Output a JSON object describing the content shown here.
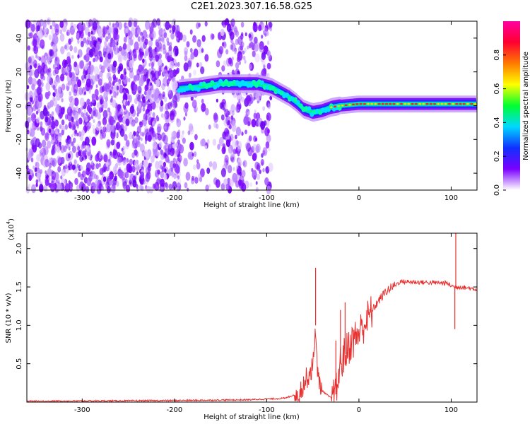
{
  "title": "C2E1.2023.307.16.58.G25",
  "chart_data": [
    {
      "type": "heatmap",
      "name": "spectrogram",
      "xlabel": "Height of straight line (km)",
      "ylabel": "Frequency (Hz)",
      "xlim": [
        -360,
        128
      ],
      "ylim": [
        -50,
        50
      ],
      "xticks": [
        -300,
        -200,
        -100,
        0,
        100
      ],
      "yticks": [
        -40,
        -20,
        0,
        20,
        40
      ],
      "colorbar": {
        "label": "Normalized spectral amplitude",
        "range": [
          0,
          1
        ],
        "ticks": [
          "0.0",
          "0.2",
          "0.4",
          "0.6",
          "0.8"
        ],
        "colormap": [
          "#ffffff",
          "#7a00ff",
          "#1030ff",
          "#00d8ff",
          "#00ff30",
          "#ffff00",
          "#ff7a00",
          "#ff0030",
          "#ff00a0"
        ]
      },
      "signal_track": [
        {
          "x": -195,
          "y": 10
        },
        {
          "x": -175,
          "y": 11
        },
        {
          "x": -150,
          "y": 13
        },
        {
          "x": -130,
          "y": 13
        },
        {
          "x": -110,
          "y": 13
        },
        {
          "x": -95,
          "y": 11
        },
        {
          "x": -85,
          "y": 8
        },
        {
          "x": -75,
          "y": 5
        },
        {
          "x": -68,
          "y": 2
        },
        {
          "x": -60,
          "y": -2
        },
        {
          "x": -50,
          "y": -4
        },
        {
          "x": -40,
          "y": -3
        },
        {
          "x": -30,
          "y": -1
        },
        {
          "x": -20,
          "y": 0
        },
        {
          "x": 0,
          "y": 1
        },
        {
          "x": 50,
          "y": 1
        },
        {
          "x": 100,
          "y": 1
        },
        {
          "x": 128,
          "y": 1
        }
      ]
    },
    {
      "type": "line",
      "name": "snr",
      "xlabel": "Height of straight line (km)",
      "ylabel": "SNR (10 * v/v)",
      "y_exponent": "(x10",
      "y_exponent_power": "4",
      "y_exponent_close": ")",
      "xlim": [
        -360,
        128
      ],
      "ylim": [
        0,
        2.2
      ],
      "xticks": [
        -300,
        -200,
        -100,
        0,
        100
      ],
      "ytick_labels": [
        "0.5",
        "1.0",
        "1.5",
        "2.0"
      ],
      "ytick_values": [
        0.5,
        1.0,
        1.5,
        2.0
      ],
      "color": "#e83030",
      "series_envelope": [
        {
          "x": -360,
          "y": 0.01
        },
        {
          "x": -200,
          "y": 0.02
        },
        {
          "x": -120,
          "y": 0.03
        },
        {
          "x": -80,
          "y": 0.05
        },
        {
          "x": -65,
          "y": 0.12
        },
        {
          "x": -55,
          "y": 0.35
        },
        {
          "x": -50,
          "y": 0.45
        },
        {
          "x": -47,
          "y": 1.0
        },
        {
          "x": -45,
          "y": 0.35
        },
        {
          "x": -40,
          "y": 0.15
        },
        {
          "x": -30,
          "y": 0.05
        },
        {
          "x": -25,
          "y": 0.1
        },
        {
          "x": -20,
          "y": 0.5
        },
        {
          "x": -10,
          "y": 0.75
        },
        {
          "x": 0,
          "y": 0.9
        },
        {
          "x": 10,
          "y": 1.1
        },
        {
          "x": 20,
          "y": 1.3
        },
        {
          "x": 30,
          "y": 1.45
        },
        {
          "x": 45,
          "y": 1.57
        },
        {
          "x": 70,
          "y": 1.56
        },
        {
          "x": 95,
          "y": 1.55
        },
        {
          "x": 103,
          "y": 1.5
        },
        {
          "x": 110,
          "y": 1.5
        },
        {
          "x": 128,
          "y": 1.47
        }
      ],
      "spikes": [
        {
          "x": -47,
          "y": 1.75
        },
        {
          "x": -25,
          "y": 0.8
        },
        {
          "x": -20,
          "y": 1.2
        },
        {
          "x": -15,
          "y": 1.3
        },
        {
          "x": 105,
          "y": 2.2
        },
        {
          "x": 104,
          "y": 0.95
        }
      ]
    }
  ]
}
